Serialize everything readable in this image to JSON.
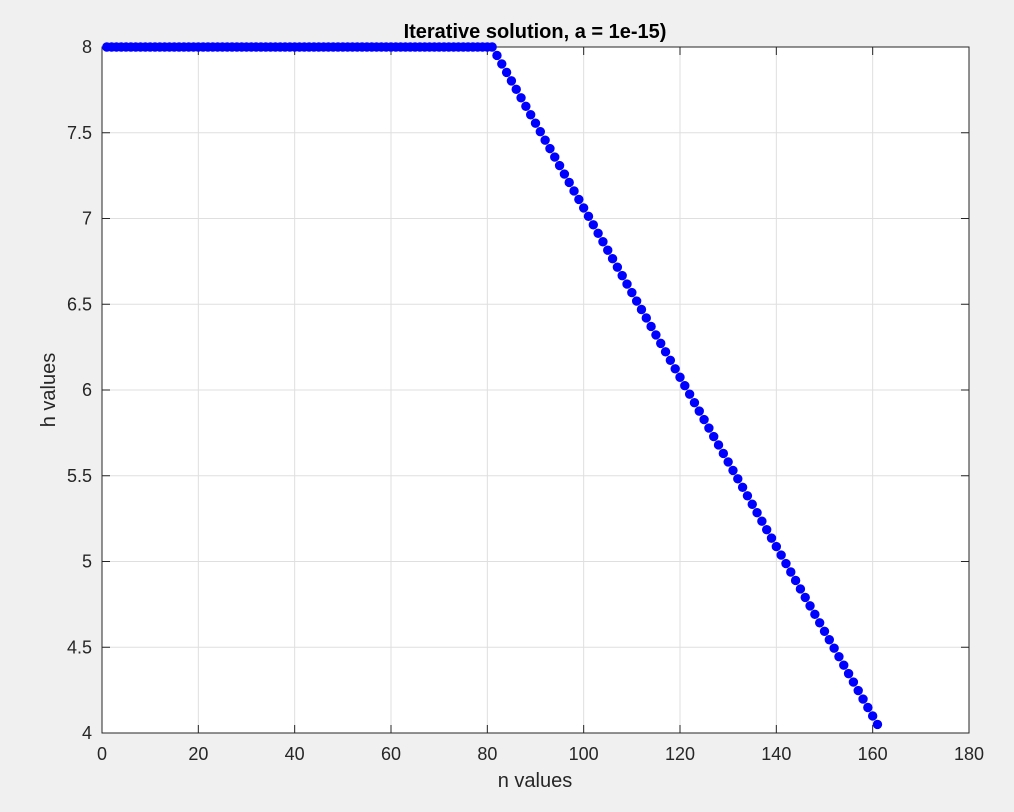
{
  "figure": {
    "background": "#f0f0f0"
  },
  "chart_data": {
    "type": "scatter",
    "title": "Iterative solution, a = 1e-15)",
    "xlabel": "n values",
    "ylabel": "h values",
    "xlim": [
      0,
      180
    ],
    "ylim": [
      4,
      8
    ],
    "xticks": [
      0,
      20,
      40,
      60,
      80,
      100,
      120,
      140,
      160,
      180
    ],
    "xtick_labels": [
      "0",
      "20",
      "40",
      "60",
      "80",
      "100",
      "120",
      "140",
      "160",
      "180"
    ],
    "yticks": [
      4,
      4.5,
      5,
      5.5,
      6,
      6.5,
      7,
      7.5,
      8
    ],
    "ytick_labels": [
      "4",
      "4.5",
      "5",
      "5.5",
      "6",
      "6.5",
      "7",
      "7.5",
      "8"
    ],
    "grid": true,
    "legend": "none",
    "marker_color": "#0000ff",
    "series": [
      {
        "marker": "filled-circle",
        "x_start": 1,
        "x_end": 161,
        "x_step": 1,
        "plateau_value": 8,
        "plateau_end_x": 81,
        "decline_end_value": 4.05
      }
    ]
  }
}
